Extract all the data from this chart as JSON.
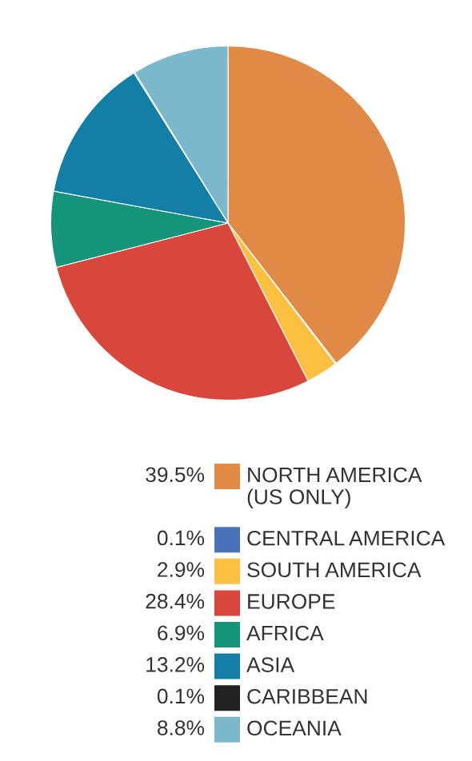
{
  "chart_data": {
    "type": "pie",
    "categories": [
      "NORTH AMERICA\n(US ONLY)",
      "CENTRAL AMERICA",
      "SOUTH AMERICA",
      "EUROPE",
      "AFRICA",
      "ASIA",
      "CARIBBEAN",
      "OCEANIA"
    ],
    "values": [
      39.5,
      0.1,
      2.9,
      28.4,
      6.9,
      13.2,
      0.1,
      8.8
    ],
    "colors": [
      "#e08a45",
      "#4a72b8",
      "#fcc040",
      "#d9473c",
      "#14957a",
      "#137ea6",
      "#222222",
      "#7cb8cc"
    ],
    "value_labels": [
      "39.5%",
      "0.1%",
      "2.9%",
      "28.4%",
      "6.9%",
      "13.2%",
      "0.1%",
      "8.8%"
    ],
    "legend": "bottom"
  }
}
